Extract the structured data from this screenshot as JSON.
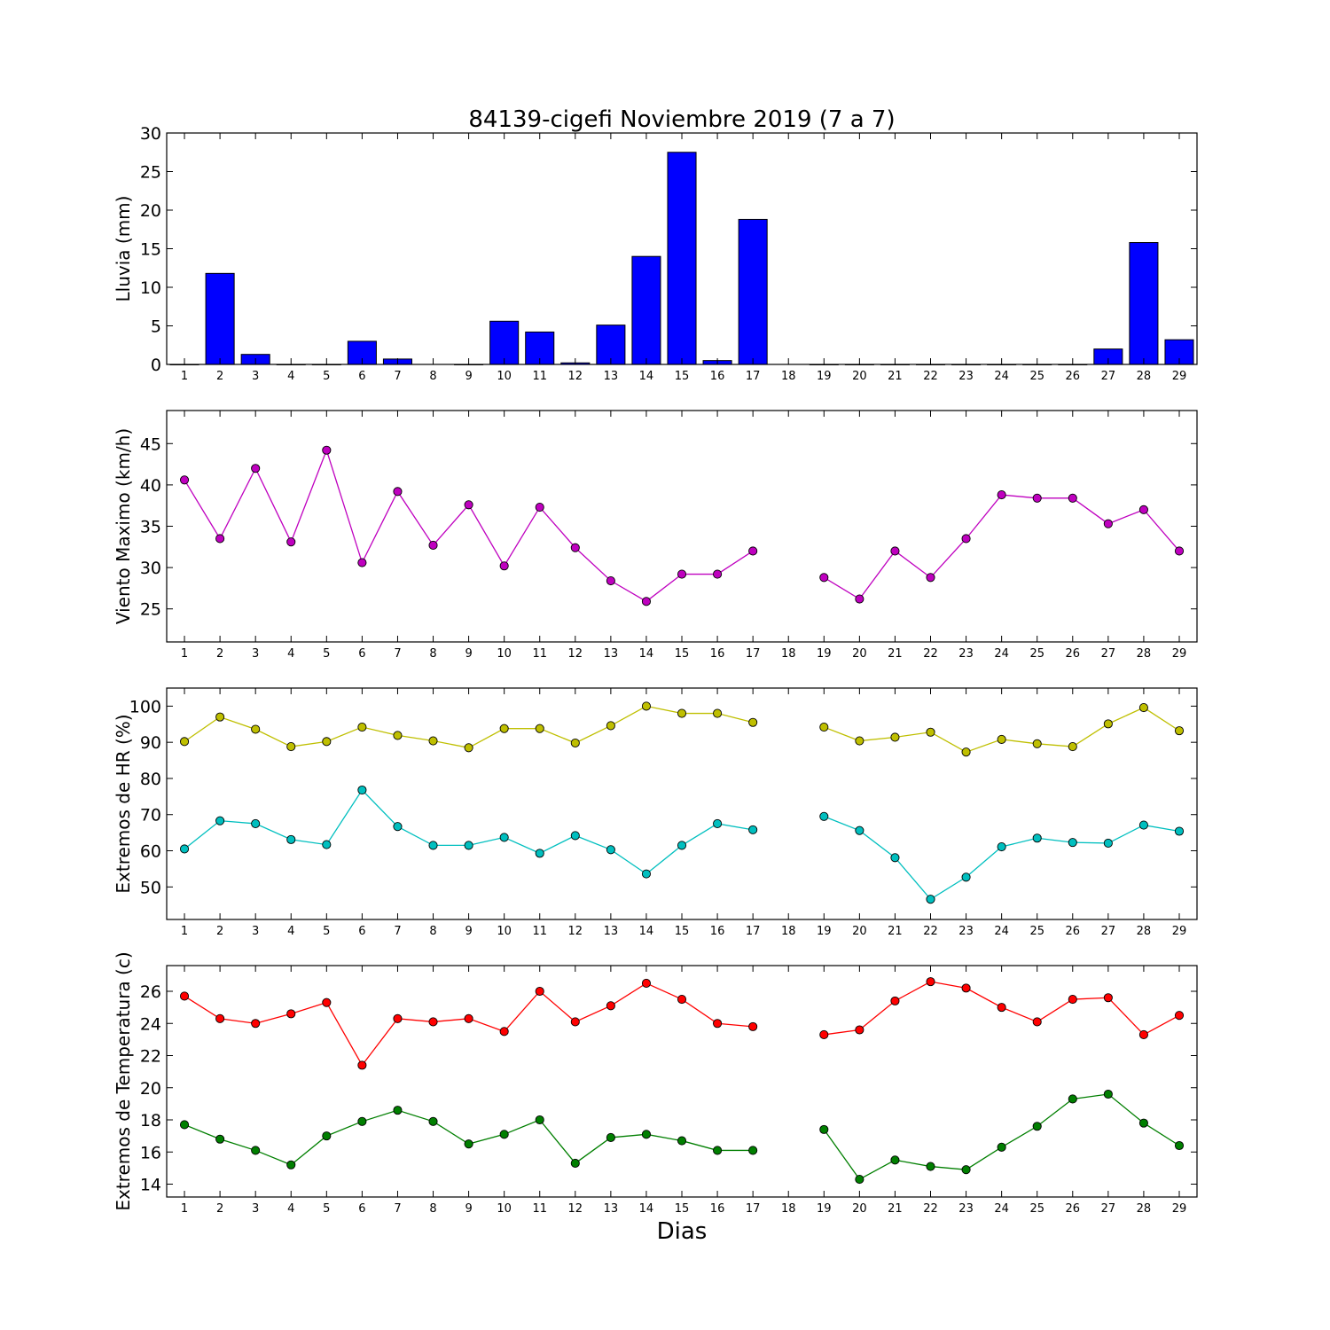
{
  "title": "84139-cigefi Noviembre 2019  (7 a 7)",
  "xlabel": "Dias",
  "chart_data": [
    {
      "type": "bar",
      "ylabel": "Lluvia (mm)",
      "ylim": [
        0,
        30
      ],
      "yticks": [
        0,
        5,
        10,
        15,
        20,
        25,
        30
      ],
      "grid": false,
      "categories": [
        "1",
        "2",
        "3",
        "4",
        "5",
        "6",
        "7",
        "8",
        "9",
        "10",
        "11",
        "12",
        "13",
        "14",
        "15",
        "16",
        "17",
        "18",
        "19",
        "20",
        "21",
        "22",
        "23",
        "24",
        "25",
        "26",
        "27",
        "28",
        "29"
      ],
      "series": [
        {
          "color": "#0000ff",
          "values": [
            0,
            11.8,
            1.3,
            0,
            0,
            3.0,
            0.7,
            null,
            0,
            5.6,
            4.2,
            0.2,
            5.1,
            14.0,
            27.5,
            0.5,
            18.8,
            null,
            0,
            0,
            0,
            0,
            0,
            0,
            0,
            0,
            2.0,
            15.8,
            3.2
          ]
        }
      ]
    },
    {
      "type": "line",
      "ylabel": "Viento Maximo (km/h)",
      "ylim": [
        21,
        49
      ],
      "yticks": [
        25,
        30,
        35,
        40,
        45
      ],
      "grid": false,
      "categories": [
        "1",
        "2",
        "3",
        "4",
        "5",
        "6",
        "7",
        "8",
        "9",
        "10",
        "11",
        "12",
        "13",
        "14",
        "15",
        "16",
        "17",
        "18",
        "19",
        "20",
        "21",
        "22",
        "23",
        "24",
        "25",
        "26",
        "27",
        "28",
        "29"
      ],
      "series": [
        {
          "color": "#bf00bf",
          "values": [
            40.6,
            33.5,
            42.0,
            33.1,
            44.2,
            30.6,
            39.2,
            32.7,
            37.6,
            30.2,
            37.3,
            32.4,
            28.4,
            25.9,
            29.2,
            29.2,
            32.0,
            null,
            28.8,
            26.2,
            32.0,
            28.8,
            33.5,
            38.8,
            38.4,
            38.4,
            35.3,
            37.0,
            32.0
          ]
        }
      ]
    },
    {
      "type": "line",
      "ylabel": "Extremos de HR (%)",
      "ylim": [
        41,
        105
      ],
      "yticks": [
        50,
        60,
        70,
        80,
        90,
        100
      ],
      "grid": false,
      "categories": [
        "1",
        "2",
        "3",
        "4",
        "5",
        "6",
        "7",
        "8",
        "9",
        "10",
        "11",
        "12",
        "13",
        "14",
        "15",
        "16",
        "17",
        "18",
        "19",
        "20",
        "21",
        "22",
        "23",
        "24",
        "25",
        "26",
        "27",
        "28",
        "29"
      ],
      "series": [
        {
          "color": "#bfbf00",
          "values": [
            90.2,
            97.0,
            93.6,
            88.8,
            90.2,
            94.2,
            91.9,
            90.4,
            88.5,
            93.8,
            93.8,
            89.8,
            94.6,
            100.0,
            98.0,
            98.0,
            95.5,
            null,
            94.2,
            90.4,
            91.4,
            92.8,
            87.3,
            90.8,
            89.6,
            88.8,
            95.1,
            99.6,
            93.2
          ]
        },
        {
          "color": "#00bfbf",
          "values": [
            60.5,
            68.3,
            67.5,
            63.1,
            61.7,
            76.8,
            66.7,
            61.5,
            61.5,
            63.7,
            59.3,
            64.2,
            60.3,
            53.6,
            61.5,
            67.5,
            65.8,
            null,
            69.5,
            65.6,
            58.1,
            46.6,
            52.7,
            61.1,
            63.5,
            62.3,
            62.1,
            67.1,
            65.4
          ]
        }
      ]
    },
    {
      "type": "line",
      "ylabel": "Extremos de Temperatura (c)",
      "ylim": [
        13.2,
        27.6
      ],
      "yticks": [
        14,
        16,
        18,
        20,
        22,
        24,
        26
      ],
      "grid": false,
      "categories": [
        "1",
        "2",
        "3",
        "4",
        "5",
        "6",
        "7",
        "8",
        "9",
        "10",
        "11",
        "12",
        "13",
        "14",
        "15",
        "16",
        "17",
        "18",
        "19",
        "20",
        "21",
        "22",
        "23",
        "24",
        "25",
        "26",
        "27",
        "28",
        "29"
      ],
      "series": [
        {
          "color": "#ff0000",
          "values": [
            25.7,
            24.3,
            24.0,
            24.6,
            25.3,
            21.4,
            24.3,
            24.1,
            24.3,
            23.5,
            26.0,
            24.1,
            25.1,
            26.5,
            25.5,
            24.0,
            23.8,
            null,
            23.3,
            23.6,
            25.4,
            26.6,
            26.2,
            25.0,
            24.1,
            25.5,
            25.6,
            23.3,
            24.5
          ]
        },
        {
          "color": "#007f00",
          "values": [
            17.7,
            16.8,
            16.1,
            15.2,
            17.0,
            17.9,
            18.6,
            17.9,
            16.5,
            17.1,
            18.0,
            15.3,
            16.9,
            17.1,
            16.7,
            16.1,
            16.1,
            null,
            17.4,
            14.3,
            15.5,
            15.1,
            14.9,
            16.3,
            17.6,
            19.3,
            19.6,
            17.8,
            16.4
          ]
        }
      ]
    }
  ]
}
